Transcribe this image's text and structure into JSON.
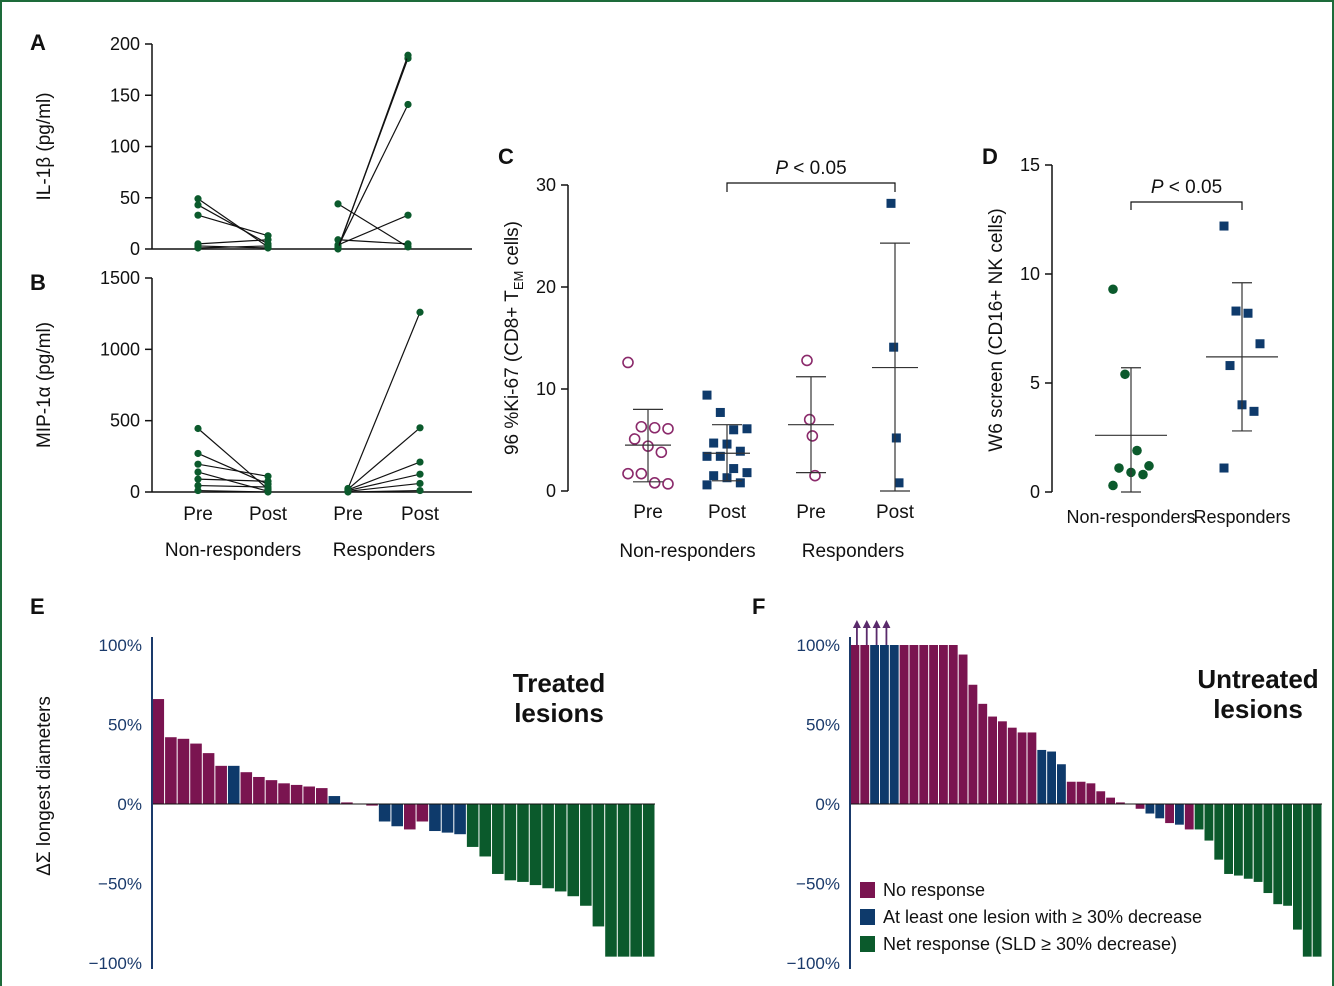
{
  "colors": {
    "green": "#0b5a2c",
    "navy": "#0e3a6b",
    "maroon": "#7a1450",
    "purple_open": "#8b2a6b",
    "frame": "#1d6b3a"
  },
  "chart_data": [
    {
      "panel": "A",
      "type": "line",
      "ylabel": "IL-1β (pg/ml)",
      "ylim": [
        0,
        200
      ],
      "yticks": [
        "0",
        "50",
        "100",
        "150",
        "200"
      ],
      "groups": [
        "Non-responders",
        "Responders"
      ],
      "timepoints": [
        "Pre",
        "Post"
      ],
      "pairs": {
        "Non-responders": [
          [
            49,
            2
          ],
          [
            43,
            5
          ],
          [
            33,
            13
          ],
          [
            5,
            9
          ],
          [
            3,
            1
          ],
          [
            1,
            3
          ]
        ],
        "Responders": [
          [
            44,
            2
          ],
          [
            9,
            5
          ],
          [
            4,
            33
          ],
          [
            2,
            141
          ],
          [
            1,
            186
          ],
          [
            0,
            189
          ]
        ]
      }
    },
    {
      "panel": "B",
      "type": "line",
      "ylabel": "MIP-1α (pg/ml)",
      "ylim": [
        0,
        1500
      ],
      "yticks": [
        "0",
        "500",
        "1000",
        "1500"
      ],
      "groups": [
        "Non-responders",
        "Responders"
      ],
      "timepoints": [
        "Pre",
        "Post"
      ],
      "pairs": {
        "Non-responders": [
          [
            445,
            20
          ],
          [
            270,
            55
          ],
          [
            195,
            110
          ],
          [
            140,
            5
          ],
          [
            90,
            75
          ],
          [
            45,
            35
          ],
          [
            10,
            0
          ]
        ],
        "Responders": [
          [
            25,
            1260
          ],
          [
            20,
            450
          ],
          [
            15,
            210
          ],
          [
            10,
            125
          ],
          [
            5,
            60
          ],
          [
            0,
            10
          ]
        ]
      },
      "xlabels": [
        "Pre",
        "Post",
        "Pre",
        "Post"
      ],
      "group_labels": [
        "Non-responders",
        "Responders"
      ]
    },
    {
      "panel": "C",
      "type": "scatter",
      "ylabel_parts": [
        "96 %Ki-67 (CD8+ T",
        "EM",
        " cells)"
      ],
      "ylim": [
        0,
        30
      ],
      "yticks": [
        "0",
        "10",
        "20",
        "30"
      ],
      "categories": [
        "Pre",
        "Post",
        "Pre",
        "Post"
      ],
      "group_labels": [
        "Non-responders",
        "Responders"
      ],
      "series": [
        {
          "category": "Pre",
          "group": "Non-responders",
          "marker": "open-circle",
          "values": [
            12.6,
            6.3,
            6.2,
            6.1,
            5.1,
            4.4,
            3.8,
            1.7,
            1.7,
            0.8,
            0.7
          ],
          "mean": 4.5,
          "sd_range": [
            0.9,
            8.0
          ]
        },
        {
          "category": "Post",
          "group": "Non-responders",
          "marker": "square",
          "values": [
            9.4,
            7.7,
            6.0,
            6.1,
            4.7,
            4.6,
            3.9,
            3.4,
            3.4,
            2.2,
            1.8,
            1.5,
            1.3,
            0.8,
            0.6
          ],
          "mean": 3.7,
          "sd_range": [
            1.0,
            6.5
          ]
        },
        {
          "category": "Pre",
          "group": "Responders",
          "marker": "open-circle",
          "values": [
            12.8,
            7.0,
            5.4,
            1.5
          ],
          "mean": 6.5,
          "sd_range": [
            1.8,
            11.2
          ]
        },
        {
          "category": "Post",
          "group": "Responders",
          "marker": "square",
          "values": [
            28.2,
            14.1,
            5.2,
            0.8
          ],
          "mean": 12.1,
          "sd_range": [
            0.0,
            24.3
          ]
        }
      ],
      "annotation": {
        "text_italic": "P",
        "text_rest": " < 0.05",
        "between": [
          "Post (Non-responders)",
          "Post (Responders)"
        ]
      }
    },
    {
      "panel": "D",
      "type": "scatter",
      "ylabel": "W6 screen (CD16+ NK cells)",
      "ylim": [
        0,
        15
      ],
      "yticks": [
        "0",
        "5",
        "10",
        "15"
      ],
      "categories": [
        "Non-responders",
        "Responders"
      ],
      "series": [
        {
          "category": "Non-responders",
          "marker": "circle",
          "values": [
            9.3,
            5.4,
            1.9,
            1.2,
            1.1,
            0.9,
            0.8,
            0.3
          ],
          "mean": 2.6,
          "sd_range": [
            0.0,
            5.7
          ]
        },
        {
          "category": "Responders",
          "marker": "square",
          "values": [
            12.2,
            8.3,
            8.2,
            6.8,
            5.8,
            4.0,
            3.7,
            1.1
          ],
          "mean": 6.2,
          "sd_range": [
            2.8,
            9.6
          ]
        }
      ],
      "annotation": {
        "text_italic": "P",
        "text_rest": " < 0.05"
      }
    },
    {
      "panel": "E",
      "type": "bar",
      "title": "Treated lesions",
      "title_lines": [
        "Treated",
        "lesions"
      ],
      "ylabel": "ΔΣ longest diameters",
      "yticks": [
        "100%",
        "50%",
        "0%",
        "−50%",
        "−100%"
      ],
      "ylim": [
        -100,
        100
      ],
      "values": [
        66,
        42,
        41,
        38,
        32,
        24,
        24,
        20,
        17,
        15,
        13,
        12,
        11,
        10,
        5,
        1,
        0,
        -1,
        -11,
        -14,
        -16,
        -11,
        -17,
        -18,
        -19,
        -27,
        -33,
        -44,
        -48,
        -49,
        -51,
        -53,
        -55,
        -58,
        -64,
        -77,
        -96,
        -96,
        -96,
        -96
      ],
      "classes": [
        "N",
        "N",
        "N",
        "N",
        "N",
        "N",
        "A",
        "N",
        "N",
        "N",
        "N",
        "N",
        "N",
        "N",
        "A",
        "N",
        "N",
        "N",
        "A",
        "A",
        "N",
        "N",
        "A",
        "A",
        "A",
        "R",
        "R",
        "R",
        "R",
        "R",
        "R",
        "R",
        "R",
        "R",
        "R",
        "R",
        "R",
        "R",
        "R",
        "R"
      ]
    },
    {
      "panel": "F",
      "type": "bar",
      "title": "Untreated lesions",
      "title_lines": [
        "Untreated",
        "lesions"
      ],
      "yticks": [
        "100%",
        "50%",
        "0%",
        "−50%",
        "−100%"
      ],
      "ylim": [
        -100,
        100
      ],
      "values": [
        100,
        100,
        100,
        100,
        100,
        100,
        100,
        100,
        100,
        100,
        100,
        94,
        75,
        63,
        55,
        52,
        48,
        45,
        45,
        34,
        33,
        25,
        14,
        14,
        13,
        8,
        4,
        1,
        0,
        -3,
        -6,
        -9,
        -12,
        -13,
        -16,
        -16,
        -23,
        -35,
        -44,
        -45,
        -47,
        -49,
        -56,
        -63,
        -64,
        -79,
        -96,
        -96
      ],
      "arrows": 4,
      "classes": [
        "N",
        "N",
        "A",
        "A",
        "A",
        "N",
        "N",
        "N",
        "N",
        "N",
        "N",
        "N",
        "N",
        "N",
        "N",
        "N",
        "N",
        "N",
        "N",
        "A",
        "A",
        "A",
        "N",
        "N",
        "N",
        "N",
        "N",
        "N",
        "N",
        "N",
        "A",
        "A",
        "N",
        "A",
        "N",
        "R",
        "R",
        "R",
        "R",
        "R",
        "R",
        "R",
        "R",
        "R",
        "R",
        "R",
        "R",
        "R"
      ],
      "legend": [
        "No response",
        "At least one lesion with ≥ 30% decrease",
        "Net response (SLD ≥ 30% decrease)"
      ]
    }
  ]
}
